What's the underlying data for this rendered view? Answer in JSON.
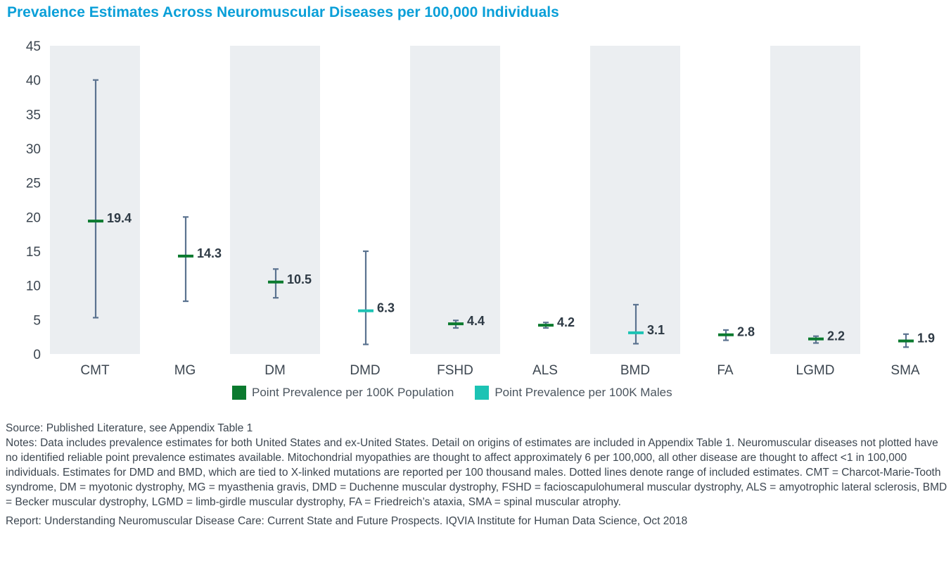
{
  "title": "Prevalence Estimates Across Neuromuscular Diseases per 100,000 Individuals",
  "colors": {
    "title": "#0a9fd8",
    "population": "#0b7a2f",
    "males": "#1cc3b4",
    "whisker": "#5b7390",
    "band": "#ebeef1"
  },
  "chart_data": {
    "type": "error-bar",
    "title": "Prevalence Estimates Across Neuromuscular Diseases per 100,000 Individuals",
    "xlabel": "",
    "ylabel": "",
    "ylim": [
      0,
      45
    ],
    "yticks": [
      0,
      5,
      10,
      15,
      20,
      25,
      30,
      35,
      40,
      45
    ],
    "grid": false,
    "legend_position": "bottom-center",
    "categories": [
      "CMT",
      "MG",
      "DM",
      "DMD",
      "FSHD",
      "ALS",
      "BMD",
      "FA",
      "LGMD",
      "SMA"
    ],
    "series": [
      {
        "name": "Point Prevalence per 100K Population",
        "key": "population",
        "points": [
          {
            "category": "CMT",
            "value": 19.4,
            "low": 5.3,
            "high": 40.0
          },
          {
            "category": "MG",
            "value": 14.3,
            "low": 7.7,
            "high": 20.0
          },
          {
            "category": "DM",
            "value": 10.5,
            "low": 8.2,
            "high": 12.4
          },
          {
            "category": "FSHD",
            "value": 4.4,
            "low": 3.8,
            "high": 4.9
          },
          {
            "category": "ALS",
            "value": 4.2,
            "low": 3.8,
            "high": 4.6
          },
          {
            "category": "FA",
            "value": 2.8,
            "low": 2.0,
            "high": 3.5
          },
          {
            "category": "LGMD",
            "value": 2.2,
            "low": 1.6,
            "high": 2.6
          },
          {
            "category": "SMA",
            "value": 1.9,
            "low": 1.0,
            "high": 2.9
          }
        ]
      },
      {
        "name": "Point Prevalence per 100K Males",
        "key": "males",
        "points": [
          {
            "category": "DMD",
            "value": 6.3,
            "low": 1.4,
            "high": 15.0
          },
          {
            "category": "BMD",
            "value": 3.1,
            "low": 1.5,
            "high": 7.2
          }
        ]
      }
    ],
    "shaded_categories": [
      "CMT",
      "DM",
      "FSHD",
      "BMD",
      "LGMD"
    ]
  },
  "legend": [
    {
      "label": "Point Prevalence per 100K Population",
      "color": "#0b7a2f"
    },
    {
      "label": "Point Prevalence per 100K Males",
      "color": "#1cc3b4"
    }
  ],
  "footer": {
    "source": "Source: Published Literature, see Appendix Table 1",
    "notes": "Notes: Data includes prevalence estimates for both United States and ex-United States. Detail on origins of estimates are included in Appendix Table 1. Neuromuscular diseases not plotted have no identified reliable point prevalence estimates available. Mitochondrial myopathies are thought to affect approximately 6 per 100,000, all other disease are thought to affect <1 in 100,000 individuals. Estimates for DMD and BMD, which are tied to X-linked mutations are reported per 100 thousand males. Dotted lines denote range of included estimates. CMT = Charcot-Marie-Tooth syndrome, DM = myotonic dystrophy, MG = myasthenia gravis, DMD = Duchenne muscular dystrophy, FSHD = facioscapulohumeral muscular dystrophy, ALS = amyotrophic lateral sclerosis, BMD = Becker muscular dystrophy, LGMD = limb-girdle muscular dystrophy, FA = Friedreich’s ataxia, SMA = spinal muscular atrophy.",
    "report": "Report: Understanding Neuromuscular Disease Care: Current State and Future Prospects. IQVIA Institute for Human Data Science, Oct 2018"
  }
}
